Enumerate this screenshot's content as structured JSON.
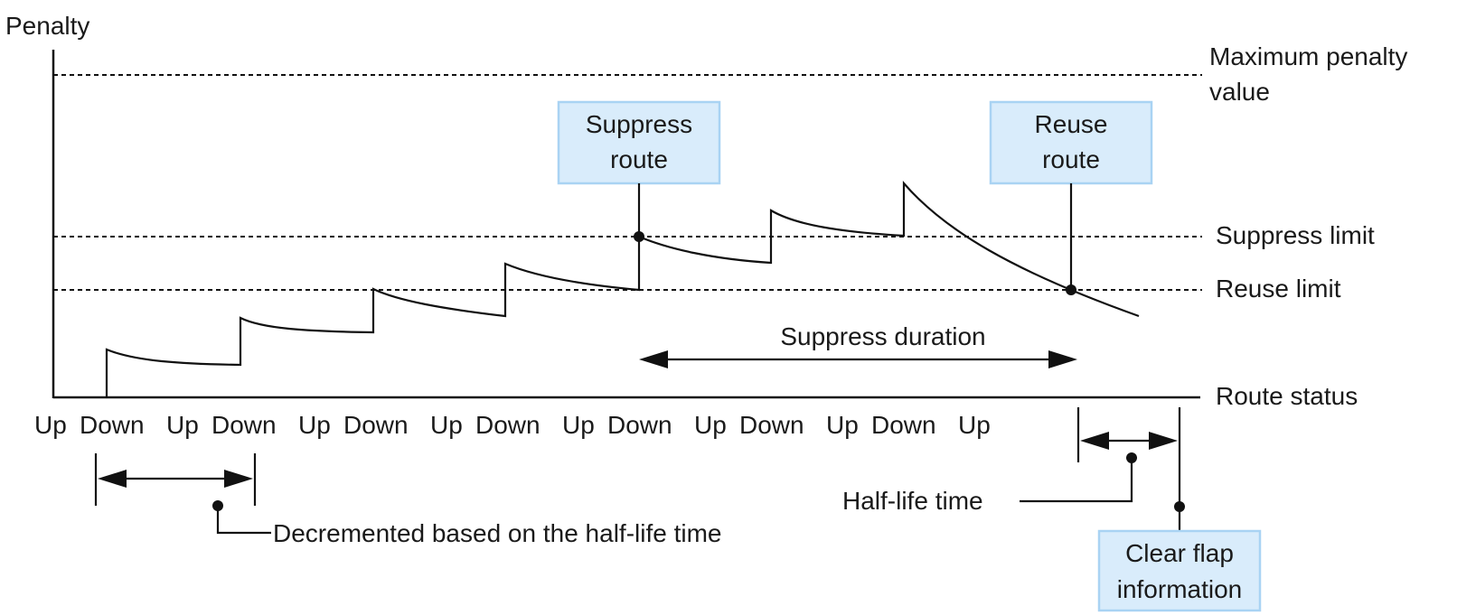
{
  "y_axis_label": "Penalty",
  "thresholds": {
    "maximum": [
      "Maximum penalty",
      "value"
    ],
    "suppress": "Suppress limit",
    "reuse": "Reuse limit"
  },
  "x_axis_label": "Route status",
  "status_sequence": [
    "Up",
    "Down",
    "Up",
    "Down",
    "Up",
    "Down",
    "Up",
    "Down",
    "Up",
    "Down",
    "Up",
    "Down",
    "Up",
    "Down",
    "Up"
  ],
  "callouts": {
    "suppress_route": [
      "Suppress",
      "route"
    ],
    "reuse_route": [
      "Reuse",
      "route"
    ],
    "clear_flap": [
      "Clear flap",
      "information"
    ]
  },
  "annotations": {
    "suppress_duration": "Suppress duration",
    "decremented": "Decremented based on the half-life time",
    "half_life": "Half-life time"
  },
  "colors": {
    "callout_fill": "#d9ecfb",
    "callout_border": "#a9d3f3",
    "line": "#111111"
  }
}
